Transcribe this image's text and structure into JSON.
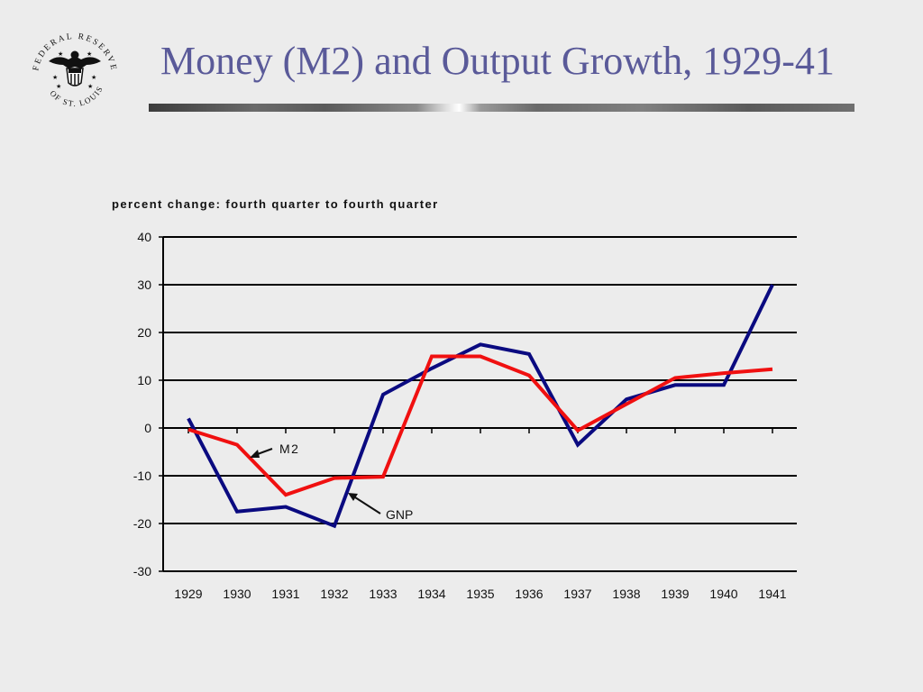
{
  "slide": {
    "title": "Money (M2) and Output Growth, 1929-41",
    "logo": {
      "icon": "federal-reserve-eagle-seal-icon",
      "text": "FEDERAL RESERVE BANK OF ST. LOUIS"
    }
  },
  "chart_data": {
    "type": "line",
    "title": "",
    "ylabel": "percent change: fourth quarter to fourth quarter",
    "xlabel": "",
    "categories": [
      "1929",
      "1930",
      "1931",
      "1932",
      "1933",
      "1934",
      "1935",
      "1936",
      "1937",
      "1938",
      "1939",
      "1940",
      "1941"
    ],
    "ylim": [
      -30,
      40
    ],
    "yticks": [
      40,
      30,
      20,
      10,
      0,
      -10,
      -20,
      -30
    ],
    "grid": true,
    "series": [
      {
        "name": "GNP",
        "color": "#0a0a80",
        "values": [
          2,
          -17.5,
          -16.5,
          -20.5,
          7,
          12.5,
          17.5,
          15.5,
          -3.5,
          6,
          9,
          9,
          30
        ]
      },
      {
        "name": "M2",
        "color": "#f01010",
        "values": [
          -0.3,
          -3.5,
          -14,
          -10.5,
          -10.2,
          15,
          15,
          11,
          -0.5,
          5,
          10.5,
          11.5,
          12.3
        ]
      }
    ],
    "annotations": [
      {
        "text": "M2",
        "series": "M2"
      },
      {
        "text": "GNP",
        "series": "GNP"
      }
    ]
  }
}
